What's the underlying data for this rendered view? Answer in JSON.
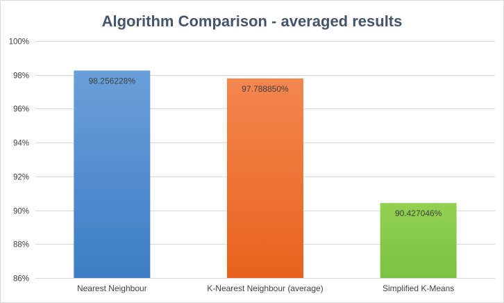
{
  "chart_data": {
    "type": "bar",
    "title": "Algorithm Comparison - averaged results",
    "xlabel": "",
    "ylabel": "",
    "categories": [
      "Nearest Neighbour",
      "K-Nearest Neighbour (average)",
      "Simplified K-Means"
    ],
    "values": [
      98.256228,
      97.78885,
      90.427046
    ],
    "data_labels": [
      "98.256228%",
      "97.788850%",
      "90.427046%"
    ],
    "ylim": [
      86,
      100
    ],
    "yticks": [
      86,
      88,
      90,
      92,
      94,
      96,
      98,
      100
    ],
    "ytick_labels": [
      "86%",
      "88%",
      "90%",
      "92%",
      "94%",
      "96%",
      "98%",
      "100%"
    ],
    "grid": true,
    "legend": "none",
    "colors": {
      "bars": [
        {
          "top": "#6a9fd9",
          "bottom": "#3e7cc4"
        },
        {
          "top": "#f3864f",
          "bottom": "#e8621e"
        },
        {
          "top": "#92d050",
          "bottom": "#7cc242"
        }
      ],
      "title": "#44546a",
      "gridline": "#d9d9d9",
      "text": "#404040"
    }
  }
}
